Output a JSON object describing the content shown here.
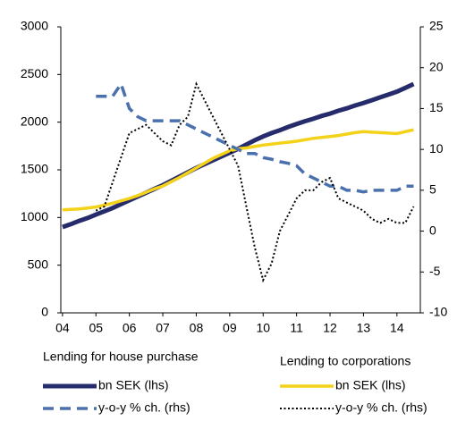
{
  "chart_data": {
    "type": "line",
    "x": [
      2004,
      2004.25,
      2004.5,
      2004.75,
      2005,
      2005.25,
      2005.5,
      2005.75,
      2006,
      2006.25,
      2006.5,
      2006.75,
      2007,
      2007.25,
      2007.5,
      2007.75,
      2008,
      2008.25,
      2008.5,
      2008.75,
      2009,
      2009.25,
      2009.5,
      2009.75,
      2010,
      2010.25,
      2010.5,
      2010.75,
      2011,
      2011.25,
      2011.5,
      2011.75,
      2012,
      2012.25,
      2012.5,
      2012.75,
      2013,
      2013.25,
      2013.5,
      2013.75,
      2014,
      2014.25,
      2014.5
    ],
    "xlim": [
      2003.95,
      2014.7
    ],
    "xticks": [
      {
        "value": 2004,
        "label": "04"
      },
      {
        "value": 2005,
        "label": "05"
      },
      {
        "value": 2006,
        "label": "06"
      },
      {
        "value": 2007,
        "label": "07"
      },
      {
        "value": 2008,
        "label": "08"
      },
      {
        "value": 2009,
        "label": "09"
      },
      {
        "value": 2010,
        "label": "10"
      },
      {
        "value": 2011,
        "label": "11"
      },
      {
        "value": 2012,
        "label": "12"
      },
      {
        "value": 2013,
        "label": "13"
      },
      {
        "value": 2014,
        "label": "14"
      }
    ],
    "ylim": [
      0,
      3000
    ],
    "yticks": [
      0,
      500,
      1000,
      1500,
      2000,
      2500,
      3000
    ],
    "y2lim": [
      -10,
      25
    ],
    "y2ticks": [
      -10,
      -5,
      0,
      5,
      10,
      15,
      20,
      25
    ],
    "legend_groups": [
      "Lending for house purchase",
      "Lending to corporations"
    ],
    "series": [
      {
        "name": "bn SEK (lhs)",
        "color": "#262b6b",
        "style": "solid",
        "width": 5,
        "values": [
          900,
          930,
          965,
          995,
          1030,
          1065,
          1100,
          1140,
          1180,
          1220,
          1260,
          1300,
          1340,
          1385,
          1430,
          1475,
          1520,
          1560,
          1600,
          1640,
          1680,
          1720,
          1765,
          1810,
          1850,
          1885,
          1915,
          1950,
          1980,
          2010,
          2035,
          2065,
          2090,
          2120,
          2145,
          2175,
          2200,
          2230,
          2260,
          2290,
          2320,
          2360,
          2400
        ]
      },
      {
        "name": "bn SEK (lhs)",
        "color": "#f5d21a",
        "style": "solid",
        "width": 3.5,
        "values": [
          1080,
          1085,
          1090,
          1100,
          1110,
          1130,
          1150,
          1175,
          1200,
          1230,
          1265,
          1300,
          1330,
          1375,
          1420,
          1470,
          1520,
          1570,
          1620,
          1660,
          1700,
          1720,
          1730,
          1745,
          1760,
          1770,
          1780,
          1790,
          1800,
          1815,
          1830,
          1840,
          1850,
          1860,
          1875,
          1890,
          1900,
          1895,
          1890,
          1885,
          1880,
          1900,
          1920
        ]
      },
      {
        "name": "y-o-y % ch. (rhs)",
        "color": "#4a70ad",
        "style": "dashed",
        "width": 3.5,
        "axis": "y2",
        "values": [
          null,
          null,
          null,
          null,
          16.5,
          16.5,
          16.5,
          18,
          15,
          14,
          13.5,
          13.5,
          13.5,
          13.5,
          13.5,
          13,
          12.5,
          12,
          11.5,
          11,
          10.5,
          10,
          9.5,
          9.5,
          9,
          8.8,
          8.5,
          8.3,
          8,
          7,
          6.5,
          6,
          5.5,
          5.5,
          5,
          5,
          4.8,
          5,
          5,
          5,
          5,
          5.5,
          5.5
        ]
      },
      {
        "name": "y-o-y % ch. (rhs)",
        "color": "#000000",
        "style": "dotted",
        "width": 2,
        "axis": "y2",
        "values": [
          null,
          null,
          null,
          null,
          2.5,
          3,
          6,
          9,
          12,
          12.5,
          13,
          12,
          11,
          10.5,
          13,
          14,
          18,
          16,
          14,
          12,
          10,
          8,
          3,
          -2,
          -6,
          -4,
          0,
          2,
          4,
          5,
          5,
          6,
          6.5,
          4,
          3.5,
          3,
          2.5,
          1.5,
          1,
          1.5,
          1,
          1,
          3
        ]
      }
    ]
  }
}
